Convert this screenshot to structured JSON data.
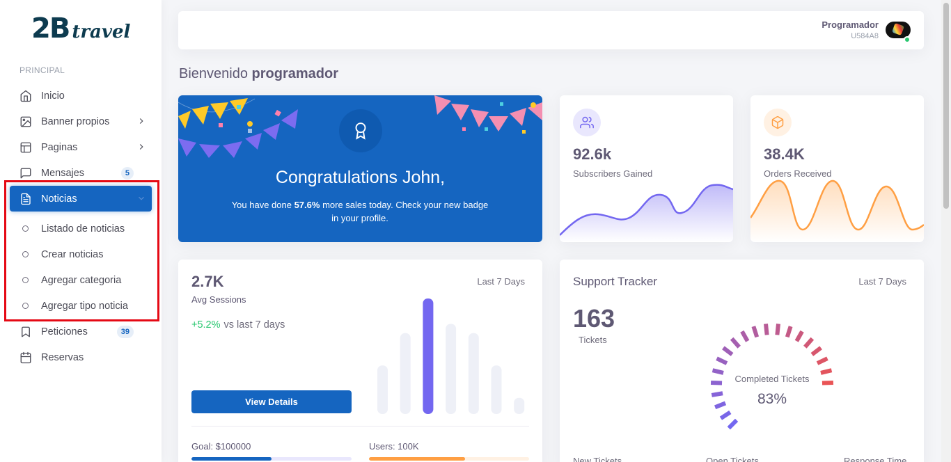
{
  "brand": {
    "logo_main": "2B",
    "logo_script": "travel"
  },
  "sidebar": {
    "section": "PRINCIPAL",
    "items": [
      {
        "label": "Inicio",
        "icon": "home-icon"
      },
      {
        "label": "Banner propios",
        "icon": "image-icon"
      },
      {
        "label": "Paginas",
        "icon": "layout-icon"
      },
      {
        "label": "Mensajes",
        "icon": "message-square-icon",
        "badge": "5"
      },
      {
        "label": "Noticias",
        "icon": "file-text-icon"
      },
      {
        "label": "Peticiones",
        "icon": "bookmark-icon",
        "badge": "39"
      },
      {
        "label": "Reservas",
        "icon": "calendar-icon"
      }
    ],
    "subitems": [
      {
        "label": "Listado de noticias"
      },
      {
        "label": "Crear noticias"
      },
      {
        "label": "Agregar categoria"
      },
      {
        "label": "Agregar tipo noticia"
      }
    ]
  },
  "topbar": {
    "user_name": "Programador",
    "user_id": "U584A8"
  },
  "welcome": {
    "prefix": "Bienvenido",
    "name": "programador"
  },
  "congrats": {
    "title": "Congratulations John,",
    "text_pre": "You have done ",
    "text_bold": "57.6%",
    "text_post": " more sales today. Check your new badge in your profile."
  },
  "stats": [
    {
      "value": "92.6k",
      "label": "Subscribers Gained",
      "color": "#7367f0"
    },
    {
      "value": "38.4K",
      "label": "Orders Received",
      "color": "#ff9f43"
    }
  ],
  "sessions": {
    "value": "2.7K",
    "label": "Avg Sessions",
    "range": "Last 7 Days",
    "change": "+5.2%",
    "change_suffix": "vs last 7 days",
    "button": "View Details",
    "bars": [
      42,
      70,
      100,
      78,
      70,
      42,
      14
    ],
    "goal_label": "Goal: $100000",
    "goal_progress": 0.5,
    "users_label": "Users: 100K",
    "users_progress": 0.6
  },
  "support": {
    "title": "Support Tracker",
    "range": "Last 7 Days",
    "tickets": "163",
    "tickets_label": "Tickets",
    "gauge_label": "Completed Tickets",
    "gauge_value": "83%",
    "gauge_fraction": 0.83,
    "footer": [
      "New Tickets",
      "Open Tickets",
      "Response Time"
    ]
  },
  "colors": {
    "primary": "#1565c0",
    "purple": "#7367f0",
    "orange": "#ff9f43",
    "green": "#28c76f",
    "highlight": "#e50914"
  }
}
